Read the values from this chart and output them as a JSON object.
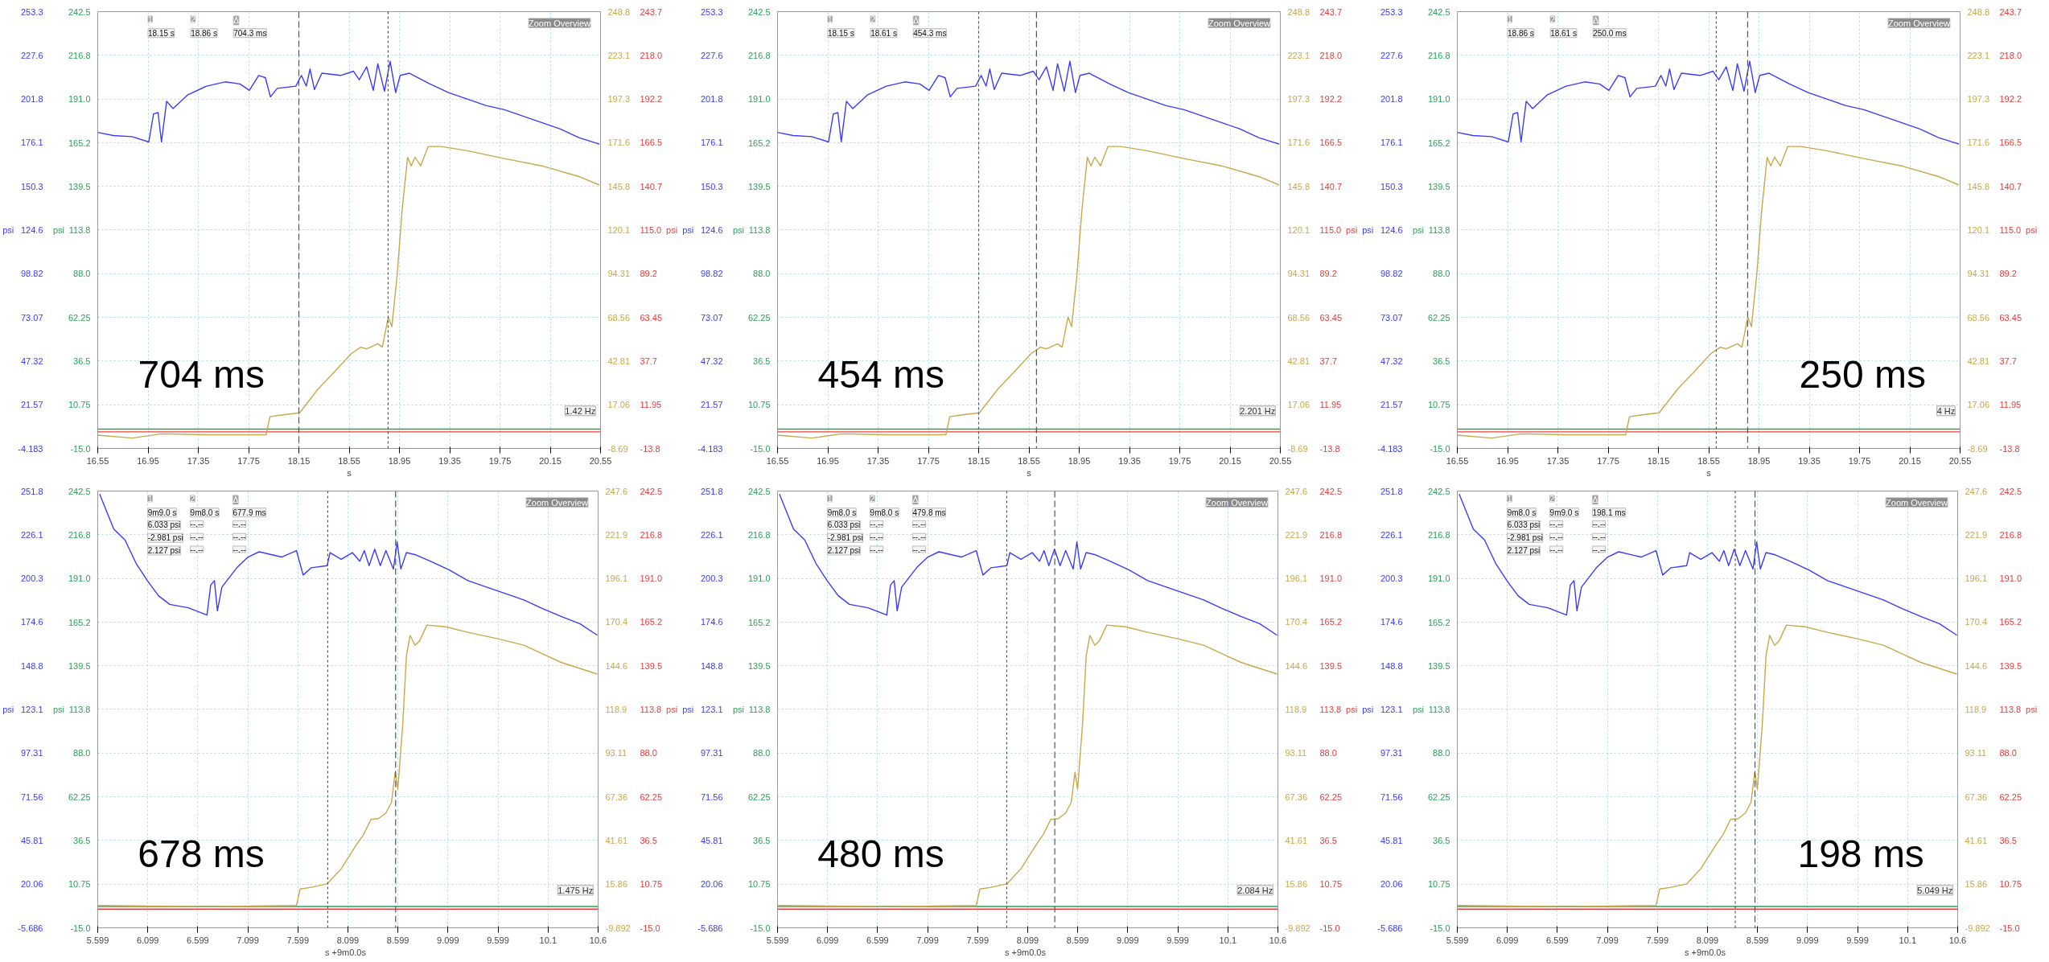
{
  "chart_data": [
    {
      "type": "line",
      "xlabel": "s",
      "ylabel": "psi",
      "y2label": "psi",
      "grid": true,
      "xlim": [
        16.55,
        20.55
      ],
      "xticks": [
        16.55,
        16.95,
        17.35,
        17.75,
        18.15,
        18.55,
        18.95,
        19.35,
        19.75,
        20.15,
        20.55
      ],
      "ylim": [
        -4.183,
        253.3
      ],
      "yticks": [
        -4.183,
        21.57,
        47.32,
        73.07,
        98.82,
        124.6,
        150.3,
        176.1,
        201.8,
        227.6,
        253.3
      ],
      "y2lim": [
        -15,
        242.5
      ],
      "y2ticks": [
        {
          "value": -15,
          "label": "-15.0"
        },
        10.75,
        36.5,
        62.25,
        {
          "value": 88,
          "label": "88.0"
        },
        113.8,
        139.5,
        165.2,
        {
          "value": 191,
          "label": "191.0"
        },
        216.8,
        242.5
      ],
      "y3lim": [
        -8.69,
        248.8
      ],
      "y3ticks": [
        -8.69,
        17.06,
        42.81,
        68.56,
        94.31,
        120.1,
        145.8,
        171.6,
        197.3,
        223.1,
        248.8
      ],
      "ref_lines": [
        {
          "axis": "x",
          "value": 18.15,
          "line_style": "dashed",
          "color": "#555555"
        },
        {
          "axis": "x",
          "value": 18.86,
          "line_style": "dotted",
          "color": "#555555"
        }
      ],
      "annotations": [
        "704 ms",
        "Zoom Overview",
        "1.42 Hz",
        "psi",
        "-13.8",
        "11.95",
        "37.7",
        "63.45",
        "89.2",
        "115.0",
        "140.7",
        "166.5",
        "192.2",
        "218.0",
        "243.7",
        "1",
        "2",
        "Δ",
        "18.15 s",
        "18.86 s",
        "704.3 ms"
      ],
      "series": [
        {
          "color": "#2ca05a",
          "axis": "y2",
          "x": [
            16.55,
            20.55
          ],
          "values": [
            -3.6,
            -3.6
          ]
        },
        {
          "color": "#e83c3c",
          "axis": "y2",
          "x": [
            16.55,
            20.55
          ],
          "values": [
            -5.2,
            -5.2
          ]
        },
        {
          "color": "#c8a84b",
          "axis": "y3",
          "x": [
            16.55,
            16.823,
            17.057,
            17.415,
            17.89,
            17.92,
            18.008,
            18.156,
            18.304,
            18.45,
            18.57,
            18.643,
            18.69,
            18.778,
            18.814,
            18.861,
            18.89,
            18.932,
            18.971,
            19.015,
            19.044,
            19.074,
            19.119,
            19.178,
            19.281,
            19.489,
            19.785,
            20.082,
            20.378,
            20.541
          ],
          "values": [
            -0.9,
            -2.6,
            -0.1,
            -0.6,
            -0.6,
            10.0,
            11.0,
            12.3,
            26.4,
            37.8,
            47.4,
            51.0,
            50.0,
            53.0,
            51.0,
            68.7,
            63.1,
            93.5,
            131.4,
            163.0,
            157.9,
            163.0,
            157.9,
            169.3,
            169.3,
            166.8,
            162.2,
            157.9,
            151.6,
            146.6
          ]
        },
        {
          "color": "#3b3bff",
          "axis": "y",
          "x": [
            16.55,
            16.674,
            16.823,
            16.956,
            16.994,
            17.03,
            17.057,
            17.098,
            17.149,
            17.267,
            17.415,
            17.563,
            17.682,
            17.756,
            17.83,
            17.883,
            17.924,
            17.978,
            18.126,
            18.17,
            18.209,
            18.239,
            18.274,
            18.333,
            18.482,
            18.585,
            18.63,
            18.689,
            18.742,
            18.778,
            18.831,
            18.876,
            18.92,
            18.956,
            19.03,
            19.193,
            19.341,
            19.489,
            19.637,
            19.785,
            19.933,
            20.082,
            20.23,
            20.378,
            20.541
          ],
          "values": [
            182.1,
            180.3,
            179.6,
            176.5,
            193.0,
            193.8,
            176.5,
            200.5,
            196.2,
            204.3,
            209.4,
            211.9,
            210.7,
            206.9,
            215.7,
            214.4,
            203.1,
            208.1,
            209.4,
            215.7,
            209.4,
            219.5,
            207.4,
            217.0,
            215.7,
            218.2,
            213.2,
            220.8,
            206.9,
            222.5,
            206.4,
            224.1,
            205.6,
            215.7,
            217.0,
            210.7,
            205.6,
            201.8,
            198.0,
            195.5,
            191.7,
            187.9,
            184.1,
            179.0,
            175.2
          ]
        }
      ]
    },
    {
      "type": "line",
      "xlabel": "s",
      "ylabel": "psi",
      "y2label": "psi",
      "grid": true,
      "xlim": [
        16.55,
        20.55
      ],
      "xticks": [
        16.55,
        16.95,
        17.35,
        17.75,
        18.15,
        18.55,
        18.95,
        19.35,
        19.75,
        20.15,
        20.55
      ],
      "ylim": [
        -4.183,
        253.3
      ],
      "yticks": [
        -4.183,
        21.57,
        47.32,
        73.07,
        98.82,
        124.6,
        150.3,
        176.1,
        201.8,
        227.6,
        253.3
      ],
      "y2lim": [
        -15,
        242.5
      ],
      "y2ticks": [
        {
          "value": -15,
          "label": "-15.0"
        },
        10.75,
        36.5,
        62.25,
        {
          "value": 88,
          "label": "88.0"
        },
        113.8,
        139.5,
        165.2,
        {
          "value": 191,
          "label": "191.0"
        },
        216.8,
        242.5
      ],
      "y3lim": [
        -8.69,
        248.8
      ],
      "y3ticks": [
        -8.69,
        17.06,
        42.81,
        68.56,
        94.31,
        120.1,
        145.8,
        171.6,
        197.3,
        223.1,
        248.8
      ],
      "ref_lines": [
        {
          "axis": "x",
          "value": 18.15,
          "line_style": "dotted",
          "color": "#555555"
        },
        {
          "axis": "x",
          "value": 18.61,
          "line_style": "dashed",
          "color": "#555555"
        }
      ],
      "annotations": [
        "454 ms",
        "Zoom Overview",
        "2.201 Hz",
        "psi",
        "-13.8",
        "11.95",
        "37.7",
        "63.45",
        "89.2",
        "115.0",
        "140.7",
        "166.5",
        "192.2",
        "218.0",
        "243.7",
        "1",
        "2",
        "Δ",
        "18.15 s",
        "18.61 s",
        "454.3 ms"
      ],
      "series": [
        {
          "color": "#2ca05a",
          "axis": "y2",
          "x": [
            16.55,
            20.55
          ],
          "values": [
            -3.6,
            -3.6
          ]
        },
        {
          "color": "#e83c3c",
          "axis": "y2",
          "x": [
            16.55,
            20.55
          ],
          "values": [
            -5.2,
            -5.2
          ]
        },
        {
          "color": "#c8a84b",
          "axis": "y3",
          "x": [
            16.55,
            16.823,
            17.057,
            17.415,
            17.89,
            17.92,
            18.008,
            18.156,
            18.304,
            18.45,
            18.57,
            18.643,
            18.69,
            18.778,
            18.814,
            18.861,
            18.89,
            18.932,
            18.971,
            19.015,
            19.044,
            19.074,
            19.119,
            19.178,
            19.281,
            19.489,
            19.785,
            20.082,
            20.378,
            20.541
          ],
          "values": [
            -0.9,
            -2.6,
            -0.1,
            -0.6,
            -0.6,
            10.0,
            11.0,
            12.3,
            26.4,
            37.8,
            47.4,
            51.0,
            50.0,
            53.0,
            51.0,
            68.7,
            63.1,
            93.5,
            131.4,
            163.0,
            157.9,
            163.0,
            157.9,
            169.3,
            169.3,
            166.8,
            162.2,
            157.9,
            151.6,
            146.6
          ]
        },
        {
          "color": "#3b3bff",
          "axis": "y",
          "x": [
            16.55,
            16.674,
            16.823,
            16.956,
            16.994,
            17.03,
            17.057,
            17.098,
            17.149,
            17.267,
            17.415,
            17.563,
            17.682,
            17.756,
            17.83,
            17.883,
            17.924,
            17.978,
            18.126,
            18.17,
            18.209,
            18.239,
            18.274,
            18.333,
            18.482,
            18.585,
            18.63,
            18.689,
            18.742,
            18.778,
            18.831,
            18.876,
            18.92,
            18.956,
            19.03,
            19.193,
            19.341,
            19.489,
            19.637,
            19.785,
            19.933,
            20.082,
            20.23,
            20.378,
            20.541
          ],
          "values": [
            182.1,
            180.3,
            179.6,
            176.5,
            193.0,
            193.8,
            176.5,
            200.5,
            196.2,
            204.3,
            209.4,
            211.9,
            210.7,
            206.9,
            215.7,
            214.4,
            203.1,
            208.1,
            209.4,
            215.7,
            209.4,
            219.5,
            207.4,
            217.0,
            215.7,
            218.2,
            213.2,
            220.8,
            206.9,
            222.5,
            206.4,
            224.1,
            205.6,
            215.7,
            217.0,
            210.7,
            205.6,
            201.8,
            198.0,
            195.5,
            191.7,
            187.9,
            184.1,
            179.0,
            175.2
          ]
        }
      ]
    },
    {
      "type": "line",
      "xlabel": "s",
      "ylabel": "psi",
      "y2label": "psi",
      "grid": true,
      "xlim": [
        16.55,
        20.55
      ],
      "xticks": [
        16.55,
        16.95,
        17.35,
        17.75,
        18.15,
        18.55,
        18.95,
        19.35,
        19.75,
        20.15,
        20.55
      ],
      "ylim": [
        -4.183,
        253.3
      ],
      "yticks": [
        -4.183,
        21.57,
        47.32,
        73.07,
        98.82,
        124.6,
        150.3,
        176.1,
        201.8,
        227.6,
        253.3
      ],
      "y2lim": [
        -15,
        242.5
      ],
      "y2ticks": [
        {
          "value": -15,
          "label": "-15.0"
        },
        10.75,
        36.5,
        62.25,
        {
          "value": 88,
          "label": "88.0"
        },
        113.8,
        139.5,
        165.2,
        {
          "value": 191,
          "label": "191.0"
        },
        216.8,
        242.5
      ],
      "y3lim": [
        -8.69,
        248.8
      ],
      "y3ticks": [
        -8.69,
        17.06,
        42.81,
        68.56,
        94.31,
        120.1,
        145.8,
        171.6,
        197.3,
        223.1,
        248.8
      ],
      "ref_lines": [
        {
          "axis": "x",
          "value": 18.61,
          "line_style": "dotted",
          "color": "#555555"
        },
        {
          "axis": "x",
          "value": 18.86,
          "line_style": "dashed",
          "color": "#555555"
        }
      ],
      "annotations": [
        "250 ms",
        "Zoom Overview",
        "4 Hz",
        "psi",
        "-13.8",
        "11.95",
        "37.7",
        "63.45",
        "89.2",
        "115.0",
        "140.7",
        "166.5",
        "192.2",
        "218.0",
        "243.7",
        "1",
        "2",
        "Δ",
        "18.86 s",
        "18.61 s",
        "250.0 ms"
      ],
      "series": [
        {
          "color": "#2ca05a",
          "axis": "y2",
          "x": [
            16.55,
            20.55
          ],
          "values": [
            -3.6,
            -3.6
          ]
        },
        {
          "color": "#e83c3c",
          "axis": "y2",
          "x": [
            16.55,
            20.55
          ],
          "values": [
            -5.2,
            -5.2
          ]
        },
        {
          "color": "#c8a84b",
          "axis": "y3",
          "x": [
            16.55,
            16.823,
            17.057,
            17.415,
            17.89,
            17.92,
            18.008,
            18.156,
            18.304,
            18.45,
            18.57,
            18.643,
            18.69,
            18.778,
            18.814,
            18.861,
            18.89,
            18.932,
            18.971,
            19.015,
            19.044,
            19.074,
            19.119,
            19.178,
            19.281,
            19.489,
            19.785,
            20.082,
            20.378,
            20.541
          ],
          "values": [
            -0.9,
            -2.6,
            -0.1,
            -0.6,
            -0.6,
            10.0,
            11.0,
            12.3,
            26.4,
            37.8,
            47.4,
            51.0,
            50.0,
            53.0,
            51.0,
            68.7,
            63.1,
            93.5,
            131.4,
            163.0,
            157.9,
            163.0,
            157.9,
            169.3,
            169.3,
            166.8,
            162.2,
            157.9,
            151.6,
            146.6
          ]
        },
        {
          "color": "#3b3bff",
          "axis": "y",
          "x": [
            16.55,
            16.674,
            16.823,
            16.956,
            16.994,
            17.03,
            17.057,
            17.098,
            17.149,
            17.267,
            17.415,
            17.563,
            17.682,
            17.756,
            17.83,
            17.883,
            17.924,
            17.978,
            18.126,
            18.17,
            18.209,
            18.239,
            18.274,
            18.333,
            18.482,
            18.585,
            18.63,
            18.689,
            18.742,
            18.778,
            18.831,
            18.876,
            18.92,
            18.956,
            19.03,
            19.193,
            19.341,
            19.489,
            19.637,
            19.785,
            19.933,
            20.082,
            20.23,
            20.378,
            20.541
          ],
          "values": [
            182.1,
            180.3,
            179.6,
            176.5,
            193.0,
            193.8,
            176.5,
            200.5,
            196.2,
            204.3,
            209.4,
            211.9,
            210.7,
            206.9,
            215.7,
            214.4,
            203.1,
            208.1,
            209.4,
            215.7,
            209.4,
            219.5,
            207.4,
            217.0,
            215.7,
            218.2,
            213.2,
            220.8,
            206.9,
            222.5,
            206.4,
            224.1,
            205.6,
            215.7,
            217.0,
            210.7,
            205.6,
            201.8,
            198.0,
            195.5,
            191.7,
            187.9,
            184.1,
            179.0,
            175.2
          ]
        }
      ]
    },
    {
      "type": "line",
      "xlabel": "s   +9m0.0s",
      "ylabel": "psi",
      "y2label": "psi",
      "grid": true,
      "xlim": [
        5.599,
        10.6
      ],
      "xticks": [
        5.599,
        6.099,
        6.599,
        7.099,
        7.599,
        8.099,
        8.599,
        9.099,
        9.599,
        10.1,
        10.6
      ],
      "ylim": [
        -5.686,
        251.8
      ],
      "yticks": [
        -5.686,
        20.06,
        45.81,
        71.56,
        97.31,
        123.1,
        148.8,
        174.6,
        200.3,
        226.1,
        251.8
      ],
      "y2lim": [
        -15,
        242.5
      ],
      "y2ticks": [
        {
          "value": -15,
          "label": "-15.0"
        },
        10.75,
        36.5,
        62.25,
        {
          "value": 88,
          "label": "88.0"
        },
        113.8,
        139.5,
        165.2,
        {
          "value": 191,
          "label": "191.0"
        },
        216.8,
        242.5
      ],
      "y3lim": [
        -9.892,
        247.6
      ],
      "y3ticks": [
        -9.892,
        15.86,
        41.61,
        67.36,
        93.11,
        118.9,
        144.6,
        170.4,
        196.1,
        221.9,
        247.6
      ],
      "ref_lines": [
        {
          "axis": "x",
          "value": 7.898,
          "line_style": "dotted",
          "color": "#555555"
        },
        {
          "axis": "x",
          "value": 8.576,
          "line_style": "dashed",
          "color": "#555555"
        }
      ],
      "annotations": [
        "678 ms",
        "Zoom Overview",
        "1.475 Hz",
        "psi",
        "-15.0",
        "10.75",
        "36.5",
        "62.25",
        "88.0",
        "113.8",
        "139.5",
        "165.2",
        "191.0",
        "216.8",
        "242.5",
        "1",
        "2",
        "Δ",
        "9m9.0 s",
        "9m8.0 s",
        "677.9 ms",
        "6.033 psi",
        "--.--",
        "--.--",
        "-2.981 psi",
        "--.--",
        "--.--",
        "2.127 psi",
        "--.--",
        "--.--"
      ],
      "series": [
        {
          "color": "#2ca05a",
          "axis": "y2",
          "x": [
            5.599,
            10.6
          ],
          "values": [
            -2.4,
            -2.4
          ]
        },
        {
          "color": "#e83c3c",
          "axis": "y2",
          "x": [
            5.599,
            10.6
          ],
          "values": [
            -4.0,
            -4.0
          ]
        },
        {
          "color": "#c8a84b",
          "axis": "y3",
          "x": [
            5.599,
            6.691,
            7.585,
            7.622,
            7.734,
            7.891,
            8.032,
            8.181,
            8.256,
            8.33,
            8.405,
            8.479,
            8.535,
            8.572,
            8.598,
            8.647,
            8.684,
            8.721,
            8.77,
            8.815,
            8.889,
            9.076,
            9.299,
            9.597,
            9.858,
            10.044,
            10.23,
            10.592
          ],
          "values": [
            3.3,
            2.6,
            3.3,
            13.0,
            14.0,
            16.0,
            24.9,
            38.8,
            45.2,
            54.0,
            54.5,
            57.8,
            64.2,
            81.9,
            71.8,
            109.8,
            150.4,
            162.5,
            156.7,
            159.2,
            168.6,
            167.6,
            164.3,
            160.5,
            156.7,
            151.6,
            146.6,
            139.7
          ]
        },
        {
          "color": "#3b3bff",
          "axis": "y",
          "x": [
            5.618,
            5.759,
            5.871,
            5.983,
            6.095,
            6.206,
            6.318,
            6.504,
            6.691,
            6.728,
            6.765,
            6.795,
            6.84,
            6.989,
            7.101,
            7.212,
            7.436,
            7.585,
            7.652,
            7.734,
            7.891,
            7.921,
            8.032,
            8.144,
            8.218,
            8.263,
            8.311,
            8.367,
            8.423,
            8.479,
            8.554,
            8.591,
            8.628,
            8.684,
            8.777,
            8.926,
            9.113,
            9.299,
            9.485,
            9.672,
            9.858,
            10.044,
            10.23,
            10.417,
            10.592
          ],
          "values": [
            250,
            229.4,
            223.0,
            209.1,
            199.0,
            190.1,
            185.0,
            183.0,
            178.7,
            196.4,
            199.0,
            181.2,
            195.2,
            206.6,
            212.9,
            216.0,
            212.9,
            216.7,
            202.3,
            206.6,
            207.8,
            215.5,
            211.6,
            215.5,
            210.4,
            216.7,
            207.8,
            217.5,
            207.8,
            216.7,
            205.8,
            221.8,
            205.8,
            215.5,
            214.2,
            210.4,
            205.3,
            199.0,
            195.2,
            191.4,
            187.6,
            182.5,
            177.9,
            173.6,
            166.8
          ]
        }
      ]
    },
    {
      "type": "line",
      "xlabel": "s   +9m0.0s",
      "ylabel": "psi",
      "y2label": "psi",
      "grid": true,
      "xlim": [
        5.599,
        10.6
      ],
      "xticks": [
        5.599,
        6.099,
        6.599,
        7.099,
        7.599,
        8.099,
        8.599,
        9.099,
        9.599,
        10.1,
        10.6
      ],
      "ylim": [
        -5.686,
        251.8
      ],
      "yticks": [
        -5.686,
        20.06,
        45.81,
        71.56,
        97.31,
        123.1,
        148.8,
        174.6,
        200.3,
        226.1,
        251.8
      ],
      "y2lim": [
        -15,
        242.5
      ],
      "y2ticks": [
        {
          "value": -15,
          "label": "-15.0"
        },
        10.75,
        36.5,
        62.25,
        {
          "value": 88,
          "label": "88.0"
        },
        113.8,
        139.5,
        165.2,
        {
          "value": 191,
          "label": "191.0"
        },
        216.8,
        242.5
      ],
      "y3lim": [
        -9.892,
        247.6
      ],
      "y3ticks": [
        -9.892,
        15.86,
        41.61,
        67.36,
        93.11,
        118.9,
        144.6,
        170.4,
        196.1,
        221.9,
        247.6
      ],
      "ref_lines": [
        {
          "axis": "x",
          "value": 7.89,
          "line_style": "dotted",
          "color": "#555555"
        },
        {
          "axis": "x",
          "value": 8.37,
          "line_style": "dashed",
          "color": "#555555"
        }
      ],
      "annotations": [
        "480 ms",
        "Zoom Overview",
        "2.084 Hz",
        "psi",
        "-15.0",
        "10.75",
        "36.5",
        "62.25",
        "88.0",
        "113.8",
        "139.5",
        "165.2",
        "191.0",
        "216.8",
        "242.5",
        "1",
        "2",
        "Δ",
        "9m8.0 s",
        "9m8.0 s",
        "479.8 ms",
        "6.033 psi",
        "--.--",
        "--.--",
        "-2.981 psi",
        "--.--",
        "--.--",
        "2.127 psi",
        "--.--",
        "--.--"
      ],
      "series": [
        {
          "color": "#2ca05a",
          "axis": "y2",
          "x": [
            5.599,
            10.6
          ],
          "values": [
            -2.4,
            -2.4
          ]
        },
        {
          "color": "#e83c3c",
          "axis": "y2",
          "x": [
            5.599,
            10.6
          ],
          "values": [
            -4.0,
            -4.0
          ]
        },
        {
          "color": "#c8a84b",
          "axis": "y3",
          "x": [
            5.599,
            6.691,
            7.585,
            7.622,
            7.734,
            7.891,
            8.032,
            8.181,
            8.256,
            8.33,
            8.405,
            8.479,
            8.535,
            8.572,
            8.598,
            8.647,
            8.684,
            8.721,
            8.77,
            8.815,
            8.889,
            9.076,
            9.299,
            9.597,
            9.858,
            10.044,
            10.23,
            10.592
          ],
          "values": [
            3.3,
            2.6,
            3.3,
            13.0,
            14.0,
            16.0,
            24.9,
            38.8,
            45.2,
            54.0,
            54.5,
            57.8,
            64.2,
            81.9,
            71.8,
            109.8,
            150.4,
            162.5,
            156.7,
            159.2,
            168.6,
            167.6,
            164.3,
            160.5,
            156.7,
            151.6,
            146.6,
            139.7
          ]
        },
        {
          "color": "#3b3bff",
          "axis": "y",
          "x": [
            5.618,
            5.759,
            5.871,
            5.983,
            6.095,
            6.206,
            6.318,
            6.504,
            6.691,
            6.728,
            6.765,
            6.795,
            6.84,
            6.989,
            7.101,
            7.212,
            7.436,
            7.585,
            7.652,
            7.734,
            7.891,
            7.921,
            8.032,
            8.144,
            8.218,
            8.263,
            8.311,
            8.367,
            8.423,
            8.479,
            8.554,
            8.591,
            8.628,
            8.684,
            8.777,
            8.926,
            9.113,
            9.299,
            9.485,
            9.672,
            9.858,
            10.044,
            10.23,
            10.417,
            10.592
          ],
          "values": [
            250,
            229.4,
            223.0,
            209.1,
            199.0,
            190.1,
            185.0,
            183.0,
            178.7,
            196.4,
            199.0,
            181.2,
            195.2,
            206.6,
            212.9,
            216.0,
            212.9,
            216.7,
            202.3,
            206.6,
            207.8,
            215.5,
            211.6,
            215.5,
            210.4,
            216.7,
            207.8,
            217.5,
            207.8,
            216.7,
            205.8,
            221.8,
            205.8,
            215.5,
            214.2,
            210.4,
            205.3,
            199.0,
            195.2,
            191.4,
            187.6,
            182.5,
            177.9,
            173.6,
            166.8
          ]
        }
      ]
    },
    {
      "type": "line",
      "xlabel": "s   +9m0.0s",
      "ylabel": "psi",
      "y2label": "psi",
      "grid": true,
      "xlim": [
        5.599,
        10.6
      ],
      "xticks": [
        5.599,
        6.099,
        6.599,
        7.099,
        7.599,
        8.099,
        8.599,
        9.099,
        9.599,
        10.1,
        10.6
      ],
      "ylim": [
        -5.686,
        251.8
      ],
      "yticks": [
        -5.686,
        20.06,
        45.81,
        71.56,
        97.31,
        123.1,
        148.8,
        174.6,
        200.3,
        226.1,
        251.8
      ],
      "y2lim": [
        -15,
        242.5
      ],
      "y2ticks": [
        {
          "value": -15,
          "label": "-15.0"
        },
        10.75,
        36.5,
        62.25,
        {
          "value": 88,
          "label": "88.0"
        },
        113.8,
        139.5,
        165.2,
        {
          "value": 191,
          "label": "191.0"
        },
        216.8,
        242.5
      ],
      "y3lim": [
        -9.892,
        247.6
      ],
      "y3ticks": [
        -9.892,
        15.86,
        41.61,
        67.36,
        93.11,
        118.9,
        144.6,
        170.4,
        196.1,
        221.9,
        247.6
      ],
      "ref_lines": [
        {
          "axis": "x",
          "value": 8.377,
          "line_style": "dotted",
          "color": "#555555"
        },
        {
          "axis": "x",
          "value": 8.574,
          "line_style": "dashed",
          "color": "#555555"
        }
      ],
      "annotations": [
        "198 ms",
        "Zoom Overview",
        "5.049 Hz",
        "psi",
        "-15.0",
        "10.75",
        "36.5",
        "62.25",
        "88.0",
        "113.8",
        "139.5",
        "165.2",
        "191.0",
        "216.8",
        "242.5",
        "1",
        "2",
        "Δ",
        "9m8.0 s",
        "9m9.0 s",
        "198.1 ms",
        "6.033 psi",
        "--.--",
        "--.--",
        "-2.981 psi",
        "--.--",
        "--.--",
        "2.127 psi",
        "--.--",
        "--.--"
      ],
      "series": [
        {
          "color": "#2ca05a",
          "axis": "y2",
          "x": [
            5.599,
            10.6
          ],
          "values": [
            -2.4,
            -2.4
          ]
        },
        {
          "color": "#e83c3c",
          "axis": "y2",
          "x": [
            5.599,
            10.6
          ],
          "values": [
            -4.0,
            -4.0
          ]
        },
        {
          "color": "#c8a84b",
          "axis": "y3",
          "x": [
            5.599,
            6.691,
            7.585,
            7.622,
            7.734,
            7.891,
            8.032,
            8.181,
            8.256,
            8.33,
            8.405,
            8.479,
            8.535,
            8.572,
            8.598,
            8.647,
            8.684,
            8.721,
            8.77,
            8.815,
            8.889,
            9.076,
            9.299,
            9.597,
            9.858,
            10.044,
            10.23,
            10.592
          ],
          "values": [
            3.3,
            2.6,
            3.3,
            13.0,
            14.0,
            16.0,
            24.9,
            38.8,
            45.2,
            54.0,
            54.5,
            57.8,
            64.2,
            81.9,
            71.8,
            109.8,
            150.4,
            162.5,
            156.7,
            159.2,
            168.6,
            167.6,
            164.3,
            160.5,
            156.7,
            151.6,
            146.6,
            139.7
          ]
        },
        {
          "color": "#3b3bff",
          "axis": "y",
          "x": [
            5.618,
            5.759,
            5.871,
            5.983,
            6.095,
            6.206,
            6.318,
            6.504,
            6.691,
            6.728,
            6.765,
            6.795,
            6.84,
            6.989,
            7.101,
            7.212,
            7.436,
            7.585,
            7.652,
            7.734,
            7.891,
            7.921,
            8.032,
            8.144,
            8.218,
            8.263,
            8.311,
            8.367,
            8.423,
            8.479,
            8.554,
            8.591,
            8.628,
            8.684,
            8.777,
            8.926,
            9.113,
            9.299,
            9.485,
            9.672,
            9.858,
            10.044,
            10.23,
            10.417,
            10.592
          ],
          "values": [
            250,
            229.4,
            223.0,
            209.1,
            199.0,
            190.1,
            185.0,
            183.0,
            178.7,
            196.4,
            199.0,
            181.2,
            195.2,
            206.6,
            212.9,
            216.0,
            212.9,
            216.7,
            202.3,
            206.6,
            207.8,
            215.5,
            211.6,
            215.5,
            210.4,
            216.7,
            207.8,
            217.5,
            207.8,
            216.7,
            205.8,
            221.8,
            205.8,
            215.5,
            214.2,
            210.4,
            205.3,
            199.0,
            195.2,
            191.4,
            187.6,
            182.5,
            177.9,
            173.6,
            166.8
          ]
        }
      ]
    }
  ]
}
